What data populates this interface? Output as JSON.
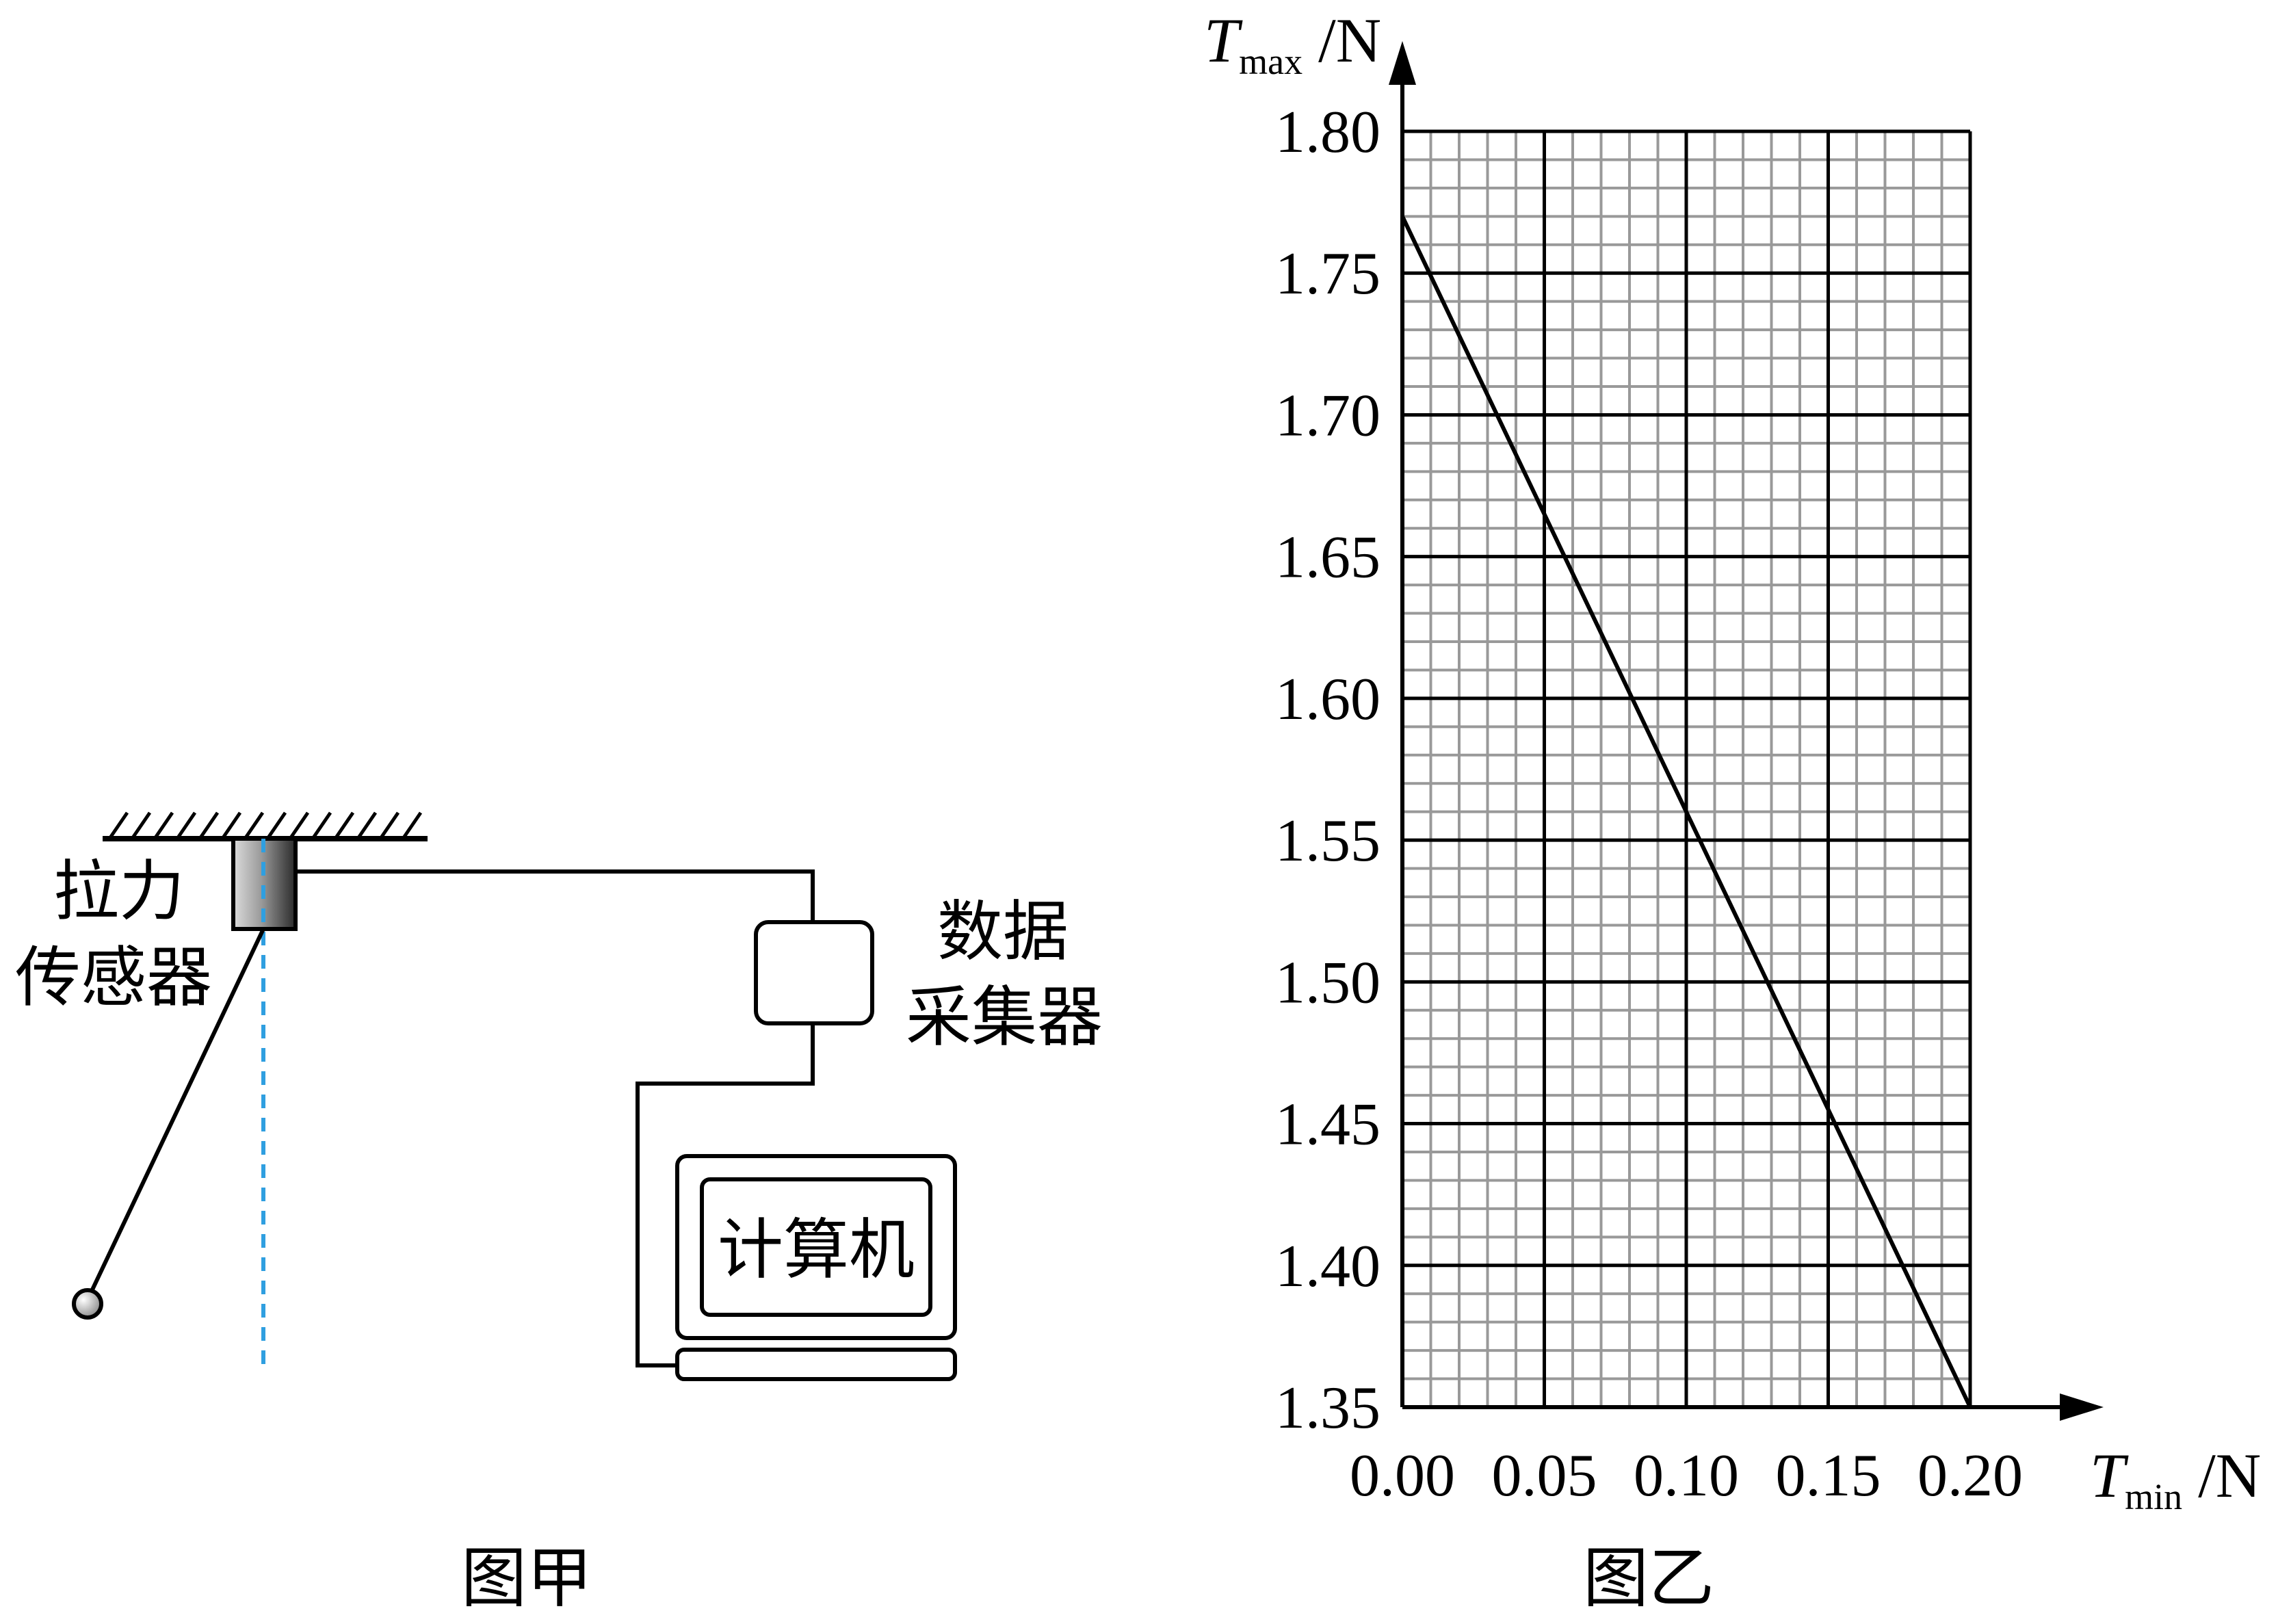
{
  "figure_a": {
    "caption": "图甲",
    "sensor_label_line1": "拉力",
    "sensor_label_line2": "传感器",
    "collector_label_line1": "数据",
    "collector_label_line2": "采集器",
    "computer_label": "计算机"
  },
  "figure_b": {
    "caption": "图乙",
    "y_axis_var": "T",
    "y_axis_sub": "max",
    "y_axis_unit": " /N",
    "x_axis_var": "T",
    "x_axis_sub": "min",
    "x_axis_unit": " /N"
  },
  "chart_data": {
    "type": "line",
    "x_ticks": [
      "0.00",
      "0.05",
      "0.10",
      "0.15",
      "0.20"
    ],
    "y_ticks": [
      "1.35",
      "1.40",
      "1.45",
      "1.50",
      "1.55",
      "1.60",
      "1.65",
      "1.70",
      "1.75",
      "1.80"
    ],
    "xlim": [
      0,
      0.2
    ],
    "ylim": [
      1.35,
      1.8
    ],
    "grid": true,
    "series": [
      {
        "x": [
          0.0,
          0.2
        ],
        "y": [
          1.77,
          1.35
        ]
      }
    ]
  }
}
